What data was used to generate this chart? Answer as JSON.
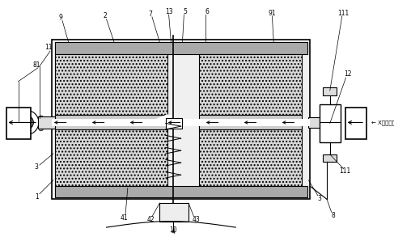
{
  "bg_color": "#ffffff",
  "line_color": "#000000",
  "fill_outer": "#f0f0f0",
  "fill_insulation": "#d8d8d8",
  "fill_heater": "#cccccc",
  "fill_cover": "#aaaaaa",
  "fill_connector": "#dddddd",
  "fill_light": "#eeeeee",
  "fill_white": "#ffffff",
  "fill_circle": "#888888"
}
